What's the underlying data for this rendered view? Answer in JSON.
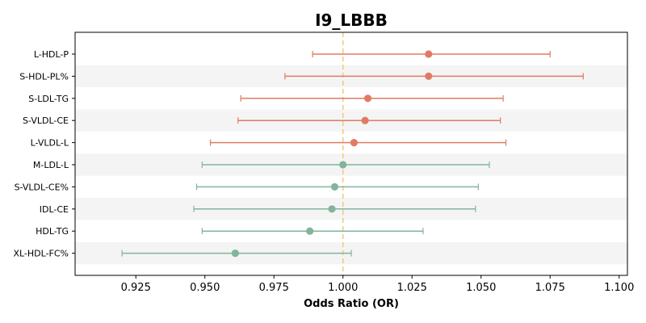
{
  "chart_data": {
    "type": "forest",
    "title": "I9_LBBB",
    "xlabel": "Odds Ratio (OR)",
    "ylabel": "",
    "xlim": [
      0.903,
      1.103
    ],
    "xticks": [
      "0.925",
      "0.950",
      "0.975",
      "1.000",
      "1.025",
      "1.050",
      "1.075",
      "1.100"
    ],
    "reference_line": 1.0,
    "reference_color": "#f5c77e",
    "colors": {
      "positive": "#e07b63",
      "negative": "#82b59b"
    },
    "alternating_bands": true,
    "rows": [
      {
        "label": "L-HDL-P",
        "or": 1.031,
        "lo": 0.989,
        "hi": 1.075,
        "group": "positive"
      },
      {
        "label": "S-HDL-PL%",
        "or": 1.031,
        "lo": 0.979,
        "hi": 1.087,
        "group": "positive"
      },
      {
        "label": "S-LDL-TG",
        "or": 1.009,
        "lo": 0.963,
        "hi": 1.058,
        "group": "positive"
      },
      {
        "label": "S-VLDL-CE",
        "or": 1.008,
        "lo": 0.962,
        "hi": 1.057,
        "group": "positive"
      },
      {
        "label": "L-VLDL-L",
        "or": 1.004,
        "lo": 0.952,
        "hi": 1.059,
        "group": "positive"
      },
      {
        "label": "M-LDL-L",
        "or": 1.0,
        "lo": 0.949,
        "hi": 1.053,
        "group": "negative"
      },
      {
        "label": "S-VLDL-CE%",
        "or": 0.997,
        "lo": 0.947,
        "hi": 1.049,
        "group": "negative"
      },
      {
        "label": "IDL-CE",
        "or": 0.996,
        "lo": 0.946,
        "hi": 1.048,
        "group": "negative"
      },
      {
        "label": "HDL-TG",
        "or": 0.988,
        "lo": 0.949,
        "hi": 1.029,
        "group": "negative"
      },
      {
        "label": "XL-HDL-FC%",
        "or": 0.961,
        "lo": 0.92,
        "hi": 1.003,
        "group": "negative"
      }
    ]
  }
}
